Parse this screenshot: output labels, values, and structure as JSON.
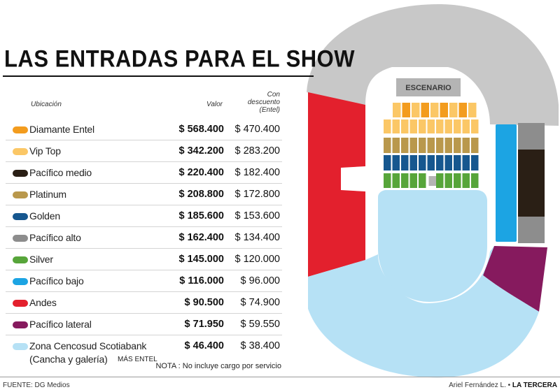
{
  "title": "LAS ENTRADAS PARA EL SHOW",
  "table": {
    "header_location": "Ubicación",
    "header_price": "Valor",
    "header_discount_lines": [
      "Con",
      "descuento",
      "(Entel)"
    ],
    "rows": [
      {
        "name": "Diamante Entel",
        "price": "$ 568.400",
        "discount": "$ 470.400",
        "color": "#f39c1e"
      },
      {
        "name": "Vip Top",
        "price": "$ 342.200",
        "discount": "$ 283.200",
        "color": "#fbc766"
      },
      {
        "name": "Pacífico medio",
        "price": "$ 220.400",
        "discount": "$ 182.400",
        "color": "#2a1f15"
      },
      {
        "name": "Platinum",
        "price": "$ 208.800",
        "discount": "$ 172.800",
        "color": "#b9984c"
      },
      {
        "name": "Golden",
        "price": "$ 185.600",
        "discount": "$ 153.600",
        "color": "#16578f"
      },
      {
        "name": "Pacífico alto",
        "price": "$ 162.400",
        "discount": "$ 134.400",
        "color": "#8d8d8d"
      },
      {
        "name": "Silver",
        "price": "$ 145.000",
        "discount": "$ 120.000",
        "color": "#57a53a"
      },
      {
        "name": "Pacífico bajo",
        "price": "$ 116.000",
        "discount": "$ 96.000",
        "color": "#1ca4e3"
      },
      {
        "name": "Andes",
        "price": "$ 90.500",
        "discount": "$ 74.900",
        "color": "#e3202d"
      },
      {
        "name": "Pacífico lateral",
        "price": "$ 71.950",
        "discount": "$ 59.550",
        "color": "#861a5e"
      },
      {
        "name": "Zona Cencosud Scotiabank",
        "name_line2": "(Cancha y galería)",
        "extra": "MÁS ENTEL",
        "price": "$ 46.400",
        "discount": "$ 38.400",
        "color": "#b6e1f5"
      }
    ]
  },
  "note": "NOTA : No incluye cargo por servicio",
  "footer": {
    "source": "FUENTE: DG Medios",
    "author": "Ariel Fernández L. •",
    "outlet": "LA TERCERA"
  },
  "map": {
    "stage_label": "ESCENARIO",
    "colors": {
      "gallery": "#c8c8c8",
      "andes": "#e3202d",
      "pacifico_lateral": "#861a5e",
      "pacifico_bajo": "#1ca4e3",
      "pacifico_medio": "#2a1f15",
      "pacifico_alto": "#8d8d8d",
      "cancha": "#b6e1f5",
      "diamante": "#f39c1e",
      "vip_top": "#fbc766",
      "platinum": "#b9984c",
      "golden": "#16578f",
      "silver": "#57a53a",
      "stage": "#b4b4b4"
    }
  }
}
